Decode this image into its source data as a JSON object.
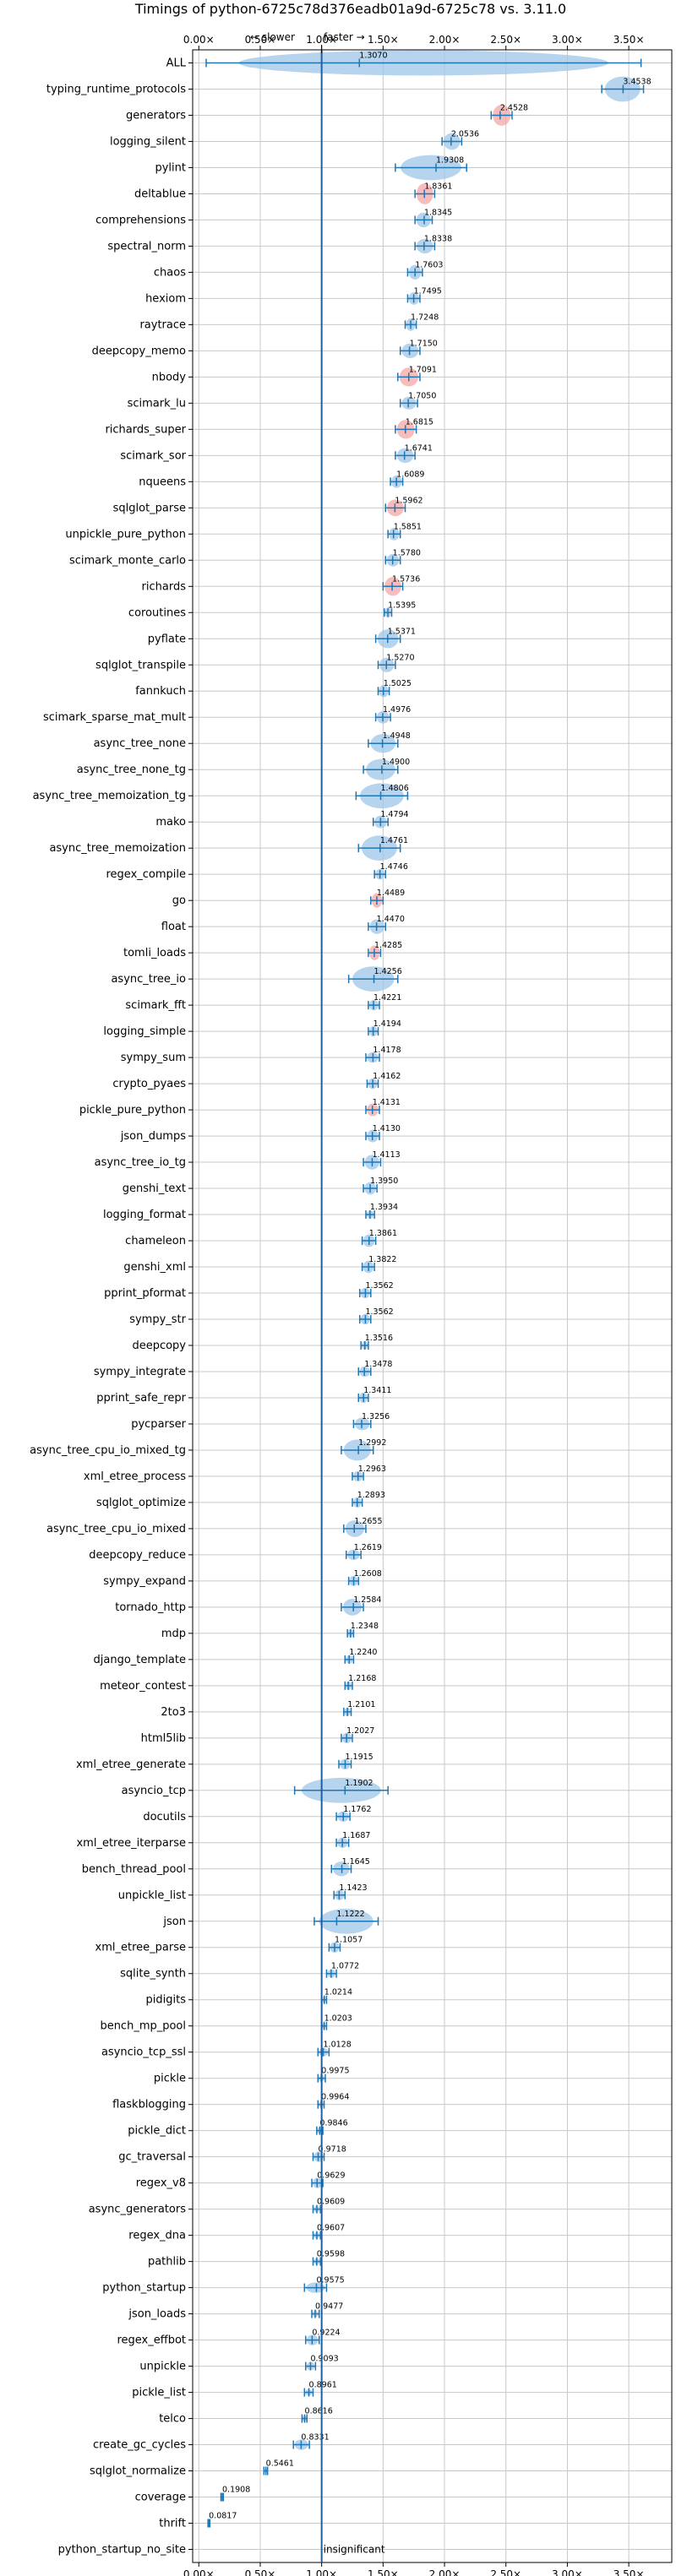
{
  "chart_data": {
    "type": "violin",
    "title": "Timings of python-6725c78d376eadb01a9d-6725c78 vs. 3.11.0",
    "x_tick_labels": [
      "0.00×",
      "0.50×",
      "1.00×",
      "1.50×",
      "2.00×",
      "2.50×",
      "3.00×",
      "3.50×"
    ],
    "x_ticks": [
      0.0,
      0.5,
      1.0,
      1.5,
      2.0,
      2.5,
      3.0,
      3.5
    ],
    "xlim": [
      -0.05,
      3.85
    ],
    "annotations": {
      "slower": "← slower",
      "faster": "faster →",
      "insignificant": "insignificant"
    },
    "grid": true,
    "reference_line": 1.0,
    "colors": {
      "violin": "#9fc5e8",
      "violin_highlight": "#f4a6a6",
      "whisker": "#1f77b4",
      "reference": "#1f5fa0",
      "grid": "#c8c8c8"
    },
    "benchmarks": [
      {
        "name": "ALL",
        "value": 1.307,
        "label": "1.3070",
        "min": 0.06,
        "max": 3.6,
        "width": 0.12
      },
      {
        "name": "typing_runtime_protocols",
        "value": 3.4538,
        "label": "3.4538",
        "min": 3.28,
        "max": 3.62,
        "width": 0.25
      },
      {
        "name": "generators",
        "value": 2.4528,
        "label": "2.4528",
        "min": 2.38,
        "max": 2.55,
        "width": 0.1,
        "highlight": true
      },
      {
        "name": "logging_silent",
        "value": 2.0536,
        "label": "2.0536",
        "min": 1.98,
        "max": 2.14,
        "width": 0.08
      },
      {
        "name": "pylint",
        "value": 1.9308,
        "label": "1.9308",
        "min": 1.6,
        "max": 2.18,
        "width": 0.2
      },
      {
        "name": "deltablue",
        "value": 1.8361,
        "label": "1.8361",
        "min": 1.76,
        "max": 1.92,
        "width": 0.1,
        "highlight": true
      },
      {
        "name": "comprehensions",
        "value": 1.8345,
        "label": "1.8345",
        "min": 1.76,
        "max": 1.9,
        "width": 0.07
      },
      {
        "name": "spectral_norm",
        "value": 1.8338,
        "label": "1.8338",
        "min": 1.76,
        "max": 1.92,
        "width": 0.07
      },
      {
        "name": "chaos",
        "value": 1.7603,
        "label": "1.7603",
        "min": 1.7,
        "max": 1.82,
        "width": 0.07
      },
      {
        "name": "hexiom",
        "value": 1.7495,
        "label": "1.7495",
        "min": 1.7,
        "max": 1.8,
        "width": 0.06
      },
      {
        "name": "raytrace",
        "value": 1.7248,
        "label": "1.7248",
        "min": 1.68,
        "max": 1.77,
        "width": 0.06
      },
      {
        "name": "deepcopy_memo",
        "value": 1.715,
        "label": "1.7150",
        "min": 1.64,
        "max": 1.8,
        "width": 0.07
      },
      {
        "name": "nbody",
        "value": 1.7091,
        "label": "1.7091",
        "min": 1.62,
        "max": 1.8,
        "width": 0.09,
        "highlight": true
      },
      {
        "name": "scimark_lu",
        "value": 1.705,
        "label": "1.7050",
        "min": 1.64,
        "max": 1.78,
        "width": 0.06
      },
      {
        "name": "richards_super",
        "value": 1.6815,
        "label": "1.6815",
        "min": 1.6,
        "max": 1.77,
        "width": 0.09,
        "highlight": true
      },
      {
        "name": "scimark_sor",
        "value": 1.6741,
        "label": "1.6741",
        "min": 1.6,
        "max": 1.76,
        "width": 0.07
      },
      {
        "name": "nqueens",
        "value": 1.6089,
        "label": "1.6089",
        "min": 1.56,
        "max": 1.66,
        "width": 0.06
      },
      {
        "name": "sqlglot_parse",
        "value": 1.5962,
        "label": "1.5962",
        "min": 1.52,
        "max": 1.68,
        "width": 0.08,
        "highlight": true
      },
      {
        "name": "unpickle_pure_python",
        "value": 1.5851,
        "label": "1.5851",
        "min": 1.54,
        "max": 1.64,
        "width": 0.06
      },
      {
        "name": "scimark_monte_carlo",
        "value": 1.578,
        "label": "1.5780",
        "min": 1.52,
        "max": 1.64,
        "width": 0.06
      },
      {
        "name": "richards",
        "value": 1.5736,
        "label": "1.5736",
        "min": 1.5,
        "max": 1.66,
        "width": 0.09,
        "highlight": true
      },
      {
        "name": "coroutines",
        "value": 1.5395,
        "label": "1.5395",
        "min": 1.51,
        "max": 1.57,
        "width": 0.05
      },
      {
        "name": "pyflate",
        "value": 1.5371,
        "label": "1.5371",
        "min": 1.44,
        "max": 1.64,
        "width": 0.09
      },
      {
        "name": "sqlglot_transpile",
        "value": 1.527,
        "label": "1.5270",
        "min": 1.46,
        "max": 1.6,
        "width": 0.07
      },
      {
        "name": "fannkuch",
        "value": 1.5025,
        "label": "1.5025",
        "min": 1.46,
        "max": 1.55,
        "width": 0.06
      },
      {
        "name": "scimark_sparse_mat_mult",
        "value": 1.4976,
        "label": "1.4976",
        "min": 1.44,
        "max": 1.56,
        "width": 0.06
      },
      {
        "name": "async_tree_none",
        "value": 1.4948,
        "label": "1.4948",
        "min": 1.38,
        "max": 1.62,
        "width": 0.09
      },
      {
        "name": "async_tree_none_tg",
        "value": 1.49,
        "label": "1.4900",
        "min": 1.34,
        "max": 1.62,
        "width": 0.1
      },
      {
        "name": "async_tree_memoization_tg",
        "value": 1.4806,
        "label": "1.4806",
        "min": 1.28,
        "max": 1.7,
        "width": 0.16
      },
      {
        "name": "mako",
        "value": 1.4794,
        "label": "1.4794",
        "min": 1.42,
        "max": 1.54,
        "width": 0.06
      },
      {
        "name": "async_tree_memoization",
        "value": 1.4761,
        "label": "1.4761",
        "min": 1.3,
        "max": 1.64,
        "width": 0.12
      },
      {
        "name": "regex_compile",
        "value": 1.4746,
        "label": "1.4746",
        "min": 1.43,
        "max": 1.52,
        "width": 0.05
      },
      {
        "name": "go",
        "value": 1.4489,
        "label": "1.4489",
        "min": 1.4,
        "max": 1.5,
        "width": 0.07,
        "highlight": true
      },
      {
        "name": "float",
        "value": 1.447,
        "label": "1.4470",
        "min": 1.38,
        "max": 1.52,
        "width": 0.07
      },
      {
        "name": "tomli_loads",
        "value": 1.4285,
        "label": "1.4285",
        "min": 1.38,
        "max": 1.48,
        "width": 0.07,
        "highlight": true
      },
      {
        "name": "async_tree_io",
        "value": 1.4256,
        "label": "1.4256",
        "min": 1.22,
        "max": 1.62,
        "width": 0.16
      },
      {
        "name": "scimark_fft",
        "value": 1.4221,
        "label": "1.4221",
        "min": 1.38,
        "max": 1.47,
        "width": 0.05
      },
      {
        "name": "logging_simple",
        "value": 1.4194,
        "label": "1.4194",
        "min": 1.38,
        "max": 1.46,
        "width": 0.05
      },
      {
        "name": "sympy_sum",
        "value": 1.4178,
        "label": "1.4178",
        "min": 1.36,
        "max": 1.47,
        "width": 0.05
      },
      {
        "name": "crypto_pyaes",
        "value": 1.4162,
        "label": "1.4162",
        "min": 1.37,
        "max": 1.46,
        "width": 0.05
      },
      {
        "name": "pickle_pure_python",
        "value": 1.4131,
        "label": "1.4131",
        "min": 1.36,
        "max": 1.47,
        "width": 0.06,
        "highlight": true
      },
      {
        "name": "json_dumps",
        "value": 1.413,
        "label": "1.4130",
        "min": 1.36,
        "max": 1.47,
        "width": 0.06
      },
      {
        "name": "async_tree_io_tg",
        "value": 1.4113,
        "label": "1.4113",
        "min": 1.34,
        "max": 1.48,
        "width": 0.07
      },
      {
        "name": "genshi_text",
        "value": 1.395,
        "label": "1.3950",
        "min": 1.34,
        "max": 1.45,
        "width": 0.06
      },
      {
        "name": "logging_format",
        "value": 1.3934,
        "label": "1.3934",
        "min": 1.36,
        "max": 1.43,
        "width": 0.04
      },
      {
        "name": "chameleon",
        "value": 1.3861,
        "label": "1.3861",
        "min": 1.33,
        "max": 1.44,
        "width": 0.06
      },
      {
        "name": "genshi_xml",
        "value": 1.3822,
        "label": "1.3822",
        "min": 1.33,
        "max": 1.43,
        "width": 0.06
      },
      {
        "name": "pprint_pformat",
        "value": 1.3562,
        "label": "1.3562",
        "min": 1.31,
        "max": 1.4,
        "width": 0.05
      },
      {
        "name": "sympy_str",
        "value": 1.3562,
        "label": "1.3562",
        "min": 1.31,
        "max": 1.4,
        "width": 0.05
      },
      {
        "name": "deepcopy",
        "value": 1.3516,
        "label": "1.3516",
        "min": 1.32,
        "max": 1.38,
        "width": 0.04
      },
      {
        "name": "sympy_integrate",
        "value": 1.3478,
        "label": "1.3478",
        "min": 1.3,
        "max": 1.4,
        "width": 0.05
      },
      {
        "name": "pprint_safe_repr",
        "value": 1.3411,
        "label": "1.3411",
        "min": 1.3,
        "max": 1.38,
        "width": 0.05
      },
      {
        "name": "pycparser",
        "value": 1.3256,
        "label": "1.3256",
        "min": 1.26,
        "max": 1.4,
        "width": 0.06
      },
      {
        "name": "async_tree_cpu_io_mixed_tg",
        "value": 1.2992,
        "label": "1.2992",
        "min": 1.16,
        "max": 1.42,
        "width": 0.1
      },
      {
        "name": "xml_etree_process",
        "value": 1.2963,
        "label": "1.2963",
        "min": 1.25,
        "max": 1.34,
        "width": 0.05
      },
      {
        "name": "sqlglot_optimize",
        "value": 1.2893,
        "label": "1.2893",
        "min": 1.25,
        "max": 1.33,
        "width": 0.05
      },
      {
        "name": "async_tree_cpu_io_mixed",
        "value": 1.2655,
        "label": "1.2655",
        "min": 1.18,
        "max": 1.36,
        "width": 0.08
      },
      {
        "name": "deepcopy_reduce",
        "value": 1.2619,
        "label": "1.2619",
        "min": 1.2,
        "max": 1.32,
        "width": 0.05
      },
      {
        "name": "sympy_expand",
        "value": 1.2608,
        "label": "1.2608",
        "min": 1.22,
        "max": 1.3,
        "width": 0.05
      },
      {
        "name": "tornado_http",
        "value": 1.2584,
        "label": "1.2584",
        "min": 1.16,
        "max": 1.34,
        "width": 0.08
      },
      {
        "name": "mdp",
        "value": 1.2348,
        "label": "1.2348",
        "min": 1.21,
        "max": 1.26,
        "width": 0.04
      },
      {
        "name": "django_template",
        "value": 1.224,
        "label": "1.2240",
        "min": 1.19,
        "max": 1.26,
        "width": 0.04
      },
      {
        "name": "meteor_contest",
        "value": 1.2168,
        "label": "1.2168",
        "min": 1.19,
        "max": 1.25,
        "width": 0.04
      },
      {
        "name": "2to3",
        "value": 1.2101,
        "label": "1.2101",
        "min": 1.18,
        "max": 1.24,
        "width": 0.04
      },
      {
        "name": "html5lib",
        "value": 1.2027,
        "label": "1.2027",
        "min": 1.16,
        "max": 1.25,
        "width": 0.05
      },
      {
        "name": "xml_etree_generate",
        "value": 1.1915,
        "label": "1.1915",
        "min": 1.14,
        "max": 1.24,
        "width": 0.05
      },
      {
        "name": "asyncio_tcp",
        "value": 1.1902,
        "label": "1.1902",
        "min": 0.78,
        "max": 1.54,
        "width": 0.22
      },
      {
        "name": "docutils",
        "value": 1.1762,
        "label": "1.1762",
        "min": 1.12,
        "max": 1.23,
        "width": 0.05
      },
      {
        "name": "xml_etree_iterparse",
        "value": 1.1687,
        "label": "1.1687",
        "min": 1.12,
        "max": 1.22,
        "width": 0.05
      },
      {
        "name": "bench_thread_pool",
        "value": 1.1645,
        "label": "1.1645",
        "min": 1.08,
        "max": 1.24,
        "width": 0.07
      },
      {
        "name": "unpickle_list",
        "value": 1.1423,
        "label": "1.1423",
        "min": 1.1,
        "max": 1.19,
        "width": 0.05
      },
      {
        "name": "json",
        "value": 1.1222,
        "label": "1.1222",
        "min": 0.94,
        "max": 1.46,
        "width": 0.2
      },
      {
        "name": "xml_etree_parse",
        "value": 1.1057,
        "label": "1.1057",
        "min": 1.06,
        "max": 1.15,
        "width": 0.05
      },
      {
        "name": "sqlite_synth",
        "value": 1.0772,
        "label": "1.0772",
        "min": 1.04,
        "max": 1.12,
        "width": 0.04
      },
      {
        "name": "pidigits",
        "value": 1.0214,
        "label": "1.0214",
        "min": 1.0,
        "max": 1.04,
        "width": 0.03
      },
      {
        "name": "bench_mp_pool",
        "value": 1.0203,
        "label": "1.0203",
        "min": 1.0,
        "max": 1.04,
        "width": 0.03
      },
      {
        "name": "asyncio_tcp_ssl",
        "value": 1.0128,
        "label": "1.0128",
        "min": 0.97,
        "max": 1.06,
        "width": 0.04
      },
      {
        "name": "pickle",
        "value": 0.9975,
        "label": "0.9975",
        "min": 0.97,
        "max": 1.03,
        "width": 0.03
      },
      {
        "name": "flaskblogging",
        "value": 0.9964,
        "label": "0.9964",
        "min": 0.97,
        "max": 1.02,
        "width": 0.03
      },
      {
        "name": "pickle_dict",
        "value": 0.9846,
        "label": "0.9846",
        "min": 0.96,
        "max": 1.01,
        "width": 0.03
      },
      {
        "name": "gc_traversal",
        "value": 0.9718,
        "label": "0.9718",
        "min": 0.93,
        "max": 1.02,
        "width": 0.05
      },
      {
        "name": "regex_v8",
        "value": 0.9629,
        "label": "0.9629",
        "min": 0.92,
        "max": 1.01,
        "width": 0.05
      },
      {
        "name": "async_generators",
        "value": 0.9609,
        "label": "0.9609",
        "min": 0.93,
        "max": 0.99,
        "width": 0.03
      },
      {
        "name": "regex_dna",
        "value": 0.9607,
        "label": "0.9607",
        "min": 0.93,
        "max": 0.99,
        "width": 0.03
      },
      {
        "name": "pathlib",
        "value": 0.9598,
        "label": "0.9598",
        "min": 0.93,
        "max": 0.99,
        "width": 0.03
      },
      {
        "name": "python_startup",
        "value": 0.9575,
        "label": "0.9575",
        "min": 0.86,
        "max": 1.04,
        "width": 0.05
      },
      {
        "name": "json_loads",
        "value": 0.9477,
        "label": "0.9477",
        "min": 0.92,
        "max": 0.98,
        "width": 0.03
      },
      {
        "name": "regex_effbot",
        "value": 0.9224,
        "label": "0.9224",
        "min": 0.87,
        "max": 0.98,
        "width": 0.05
      },
      {
        "name": "unpickle",
        "value": 0.9093,
        "label": "0.9093",
        "min": 0.87,
        "max": 0.95,
        "width": 0.04
      },
      {
        "name": "pickle_list",
        "value": 0.8961,
        "label": "0.8961",
        "min": 0.86,
        "max": 0.93,
        "width": 0.03
      },
      {
        "name": "telco",
        "value": 0.8616,
        "label": "0.8616",
        "min": 0.84,
        "max": 0.88,
        "width": 0.03
      },
      {
        "name": "create_gc_cycles",
        "value": 0.8331,
        "label": "0.8331",
        "min": 0.77,
        "max": 0.9,
        "width": 0.05
      },
      {
        "name": "sqlglot_normalize",
        "value": 0.5461,
        "label": "0.5461",
        "min": 0.53,
        "max": 0.56,
        "width": 0.02
      },
      {
        "name": "coverage",
        "value": 0.1908,
        "label": "0.1908",
        "min": 0.18,
        "max": 0.2,
        "width": 0.01
      },
      {
        "name": "thrift",
        "value": 0.0817,
        "label": "0.0817",
        "min": 0.075,
        "max": 0.09,
        "width": 0.01
      },
      {
        "name": "python_startup_no_site",
        "value": null,
        "label": "",
        "insignificant": true
      }
    ]
  }
}
